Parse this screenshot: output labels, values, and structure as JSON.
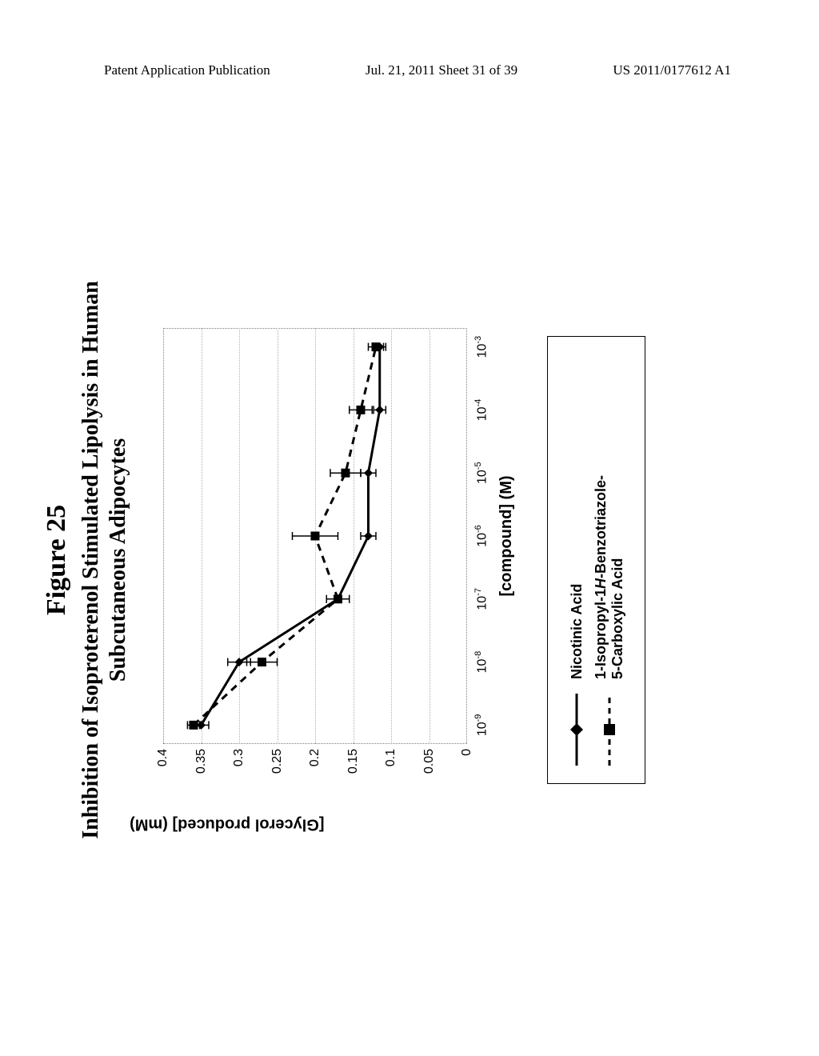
{
  "header": {
    "left": "Patent Application Publication",
    "center": "Jul. 21, 2011  Sheet 31 of 39",
    "right": "US 2011/0177612 A1"
  },
  "figure": {
    "number_label": "Figure 25",
    "title_line1": "Inhibition of Isoproterenol Stimulated Lipolysis in Human",
    "title_line2": "Subcutaneous Adipocytes"
  },
  "chart": {
    "type": "line",
    "x_label": "[compound] (M)",
    "y_label": "[Glycerol produced] (mM)",
    "x_ticks_log10": [
      -9,
      -8,
      -7,
      -6,
      -5,
      -4,
      -3
    ],
    "x_tick_labels": [
      "10⁻⁹",
      "10⁻⁸",
      "10⁻⁷",
      "10⁻⁶",
      "10⁻⁵",
      "10⁻⁴",
      "10⁻³"
    ],
    "y_ticks": [
      0,
      0.05,
      0.1,
      0.15,
      0.2,
      0.25,
      0.3,
      0.35,
      0.4
    ],
    "ylim": [
      0,
      0.4
    ],
    "xlim_log10": [
      -9.3,
      -2.7
    ],
    "background_color": "#ffffff",
    "grid_color": "#b0b0b0",
    "plot_border_style": "dotted",
    "plot_border_color": "#808080",
    "series": [
      {
        "name": "Nicotinic Acid",
        "color": "#000000",
        "line_style": "solid",
        "line_width": 3,
        "marker": "diamond",
        "marker_size": 11,
        "points_log10x_y": [
          [
            -9,
            0.35
          ],
          [
            -8,
            0.3
          ],
          [
            -7,
            0.17
          ],
          [
            -6,
            0.13
          ],
          [
            -5,
            0.13
          ],
          [
            -4,
            0.115
          ],
          [
            -3,
            0.115
          ]
        ],
        "y_err": [
          0.01,
          0.015,
          0.015,
          0.01,
          0.01,
          0.008,
          0.008
        ]
      },
      {
        "name": "1-Isopropyl-1H-Benzotriazole-5-Carboxylic Acid",
        "color": "#000000",
        "line_style": "dashed",
        "line_width": 3,
        "marker": "square",
        "marker_size": 11,
        "points_log10x_y": [
          [
            -9,
            0.36
          ],
          [
            -8,
            0.27
          ],
          [
            -7,
            0.17
          ],
          [
            -6,
            0.2
          ],
          [
            -5,
            0.16
          ],
          [
            -4,
            0.14
          ],
          [
            -3,
            0.12
          ]
        ],
        "y_err": [
          0.008,
          0.02,
          0.015,
          0.03,
          0.02,
          0.015,
          0.01
        ]
      }
    ]
  },
  "legend": {
    "label1": "Nicotinic Acid",
    "label2_pre": "1-Isopropyl-1",
    "label2_ital": "H",
    "label2_post": "-Benzotriazole-\n5-Carboxylic Acid"
  }
}
